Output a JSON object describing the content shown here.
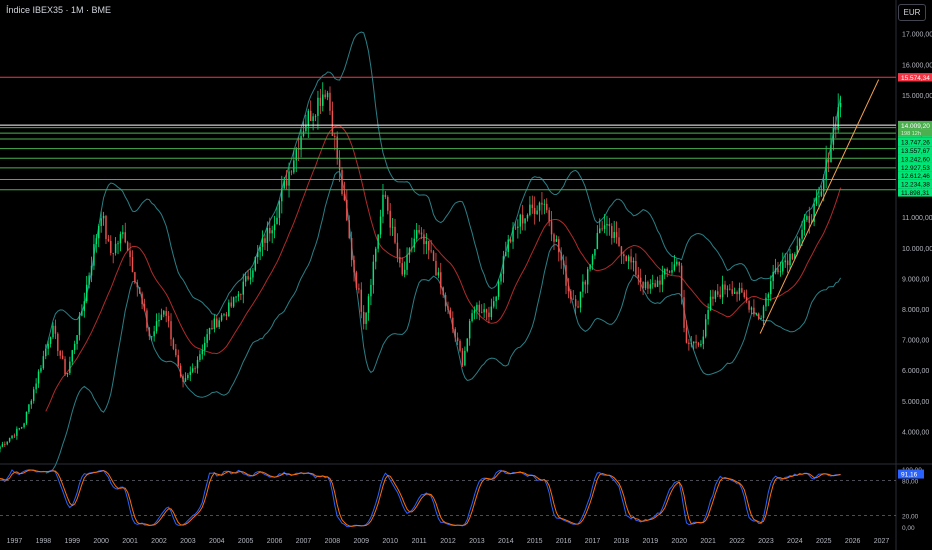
{
  "header": {
    "title": "Índice IBEX35 · 1M · BME",
    "currency": "EUR"
  },
  "chart_data": [
    {
      "type": "candlestick",
      "title": "Índice IBEX35 · 1M · BME",
      "price_axis": {
        "ticks": [
          4000,
          5000,
          6000,
          7000,
          8000,
          9000,
          10000,
          11000,
          12000,
          13000,
          14000,
          15000,
          16000,
          17000
        ],
        "tick_labels": [
          "4.000,00",
          "5.000,00",
          "6.000,00",
          "7.000,00",
          "8.000,00",
          "9.000,00",
          "10.000,00",
          "11.000,00",
          "12.000,00",
          "13.000,00",
          "14.000,00",
          "15.000,00",
          "16.000,00",
          "17.000,00"
        ],
        "range": [
          3000,
          18100
        ]
      },
      "time_axis": {
        "years": [
          "1997",
          "1998",
          "1999",
          "2000",
          "2001",
          "2002",
          "2003",
          "2004",
          "2005",
          "2006",
          "2007",
          "2008",
          "2009",
          "2010",
          "2011",
          "2012",
          "2013",
          "2014",
          "2015",
          "2016",
          "2017",
          "2018",
          "2019",
          "2020",
          "2021",
          "2022",
          "2023",
          "2024",
          "2025",
          "2026",
          "2027"
        ],
        "range": [
          1996.5,
          2027.5
        ]
      },
      "anchors": [
        [
          1996.5,
          3500
        ],
        [
          1997.3,
          4200
        ],
        [
          1998.3,
          7400
        ],
        [
          1998.8,
          5800
        ],
        [
          1999.3,
          7800
        ],
        [
          2000.0,
          11200
        ],
        [
          2000.3,
          9800
        ],
        [
          2000.8,
          10500
        ],
        [
          2001.7,
          7000
        ],
        [
          2002.2,
          8100
        ],
        [
          2002.8,
          5450
        ],
        [
          2003.2,
          6100
        ],
        [
          2003.8,
          7400
        ],
        [
          2004.5,
          8100
        ],
        [
          2005.0,
          8900
        ],
        [
          2006.0,
          11000
        ],
        [
          2007.0,
          14000
        ],
        [
          2007.8,
          15300
        ],
        [
          2008.0,
          14000
        ],
        [
          2008.7,
          9500
        ],
        [
          2009.1,
          7600
        ],
        [
          2009.8,
          11800
        ],
        [
          2010.4,
          9000
        ],
        [
          2010.9,
          10500
        ],
        [
          2011.5,
          9600
        ],
        [
          2011.8,
          8500
        ],
        [
          2012.5,
          6300
        ],
        [
          2012.9,
          8100
        ],
        [
          2013.5,
          7900
        ],
        [
          2014.0,
          10000
        ],
        [
          2014.5,
          10900
        ],
        [
          2015.3,
          11600
        ],
        [
          2015.8,
          10000
        ],
        [
          2016.2,
          8500
        ],
        [
          2016.5,
          8200
        ],
        [
          2017.3,
          10800
        ],
        [
          2018.0,
          10000
        ],
        [
          2018.9,
          8600
        ],
        [
          2019.5,
          9100
        ],
        [
          2020.0,
          9600
        ],
        [
          2020.2,
          6800
        ],
        [
          2020.8,
          7000
        ],
        [
          2021.1,
          8300
        ],
        [
          2021.7,
          8800
        ],
        [
          2022.3,
          8300
        ],
        [
          2022.8,
          7700
        ],
        [
          2023.3,
          9300
        ],
        [
          2023.9,
          9800
        ],
        [
          2024.5,
          11000
        ],
        [
          2024.9,
          11600
        ],
        [
          2025.2,
          13300
        ],
        [
          2025.6,
          14900
        ]
      ],
      "horizontal_levels": [
        {
          "value": 15574.34,
          "label": "15.574,34",
          "color": "#f23645"
        },
        {
          "value": 14009.2,
          "label": "14.009,20",
          "color": "#ffffff"
        },
        {
          "value": 13929.7,
          "label": "13.929,70",
          "color": "#4caf50"
        },
        {
          "value": 13747.26,
          "label": "13.747,26",
          "color": "#4caf50"
        },
        {
          "value": 13557.67,
          "label": "13.557,67",
          "color": "#4caf50"
        },
        {
          "value": 13242.6,
          "label": "13.242,60",
          "color": "#4caf50"
        },
        {
          "value": 12927.53,
          "label": "12.927,53",
          "color": "#4caf50"
        },
        {
          "value": 12612.46,
          "label": "12.612,46",
          "color": "#4caf50"
        },
        {
          "value": 12234.38,
          "label": "12.234,38",
          "color": "#4caf50"
        },
        {
          "value": 11898.31,
          "label": "11.898,31",
          "color": "#4caf50"
        }
      ],
      "last_price": {
        "value": 14009.2,
        "label": "14.009,20",
        "countdown": "198 12h"
      },
      "trendline": {
        "from": [
          2022.8,
          7200
        ],
        "to": [
          2026.9,
          15500
        ],
        "color": "#f7a350"
      },
      "colors": {
        "up": "#26a69a",
        "down": "#ef5350",
        "up_bright": "#00e676",
        "bands": "#2a7f86",
        "ma": "#b02a2a"
      }
    },
    {
      "type": "line",
      "title": "",
      "indicator_axis": {
        "ticks": [
          0,
          20,
          80,
          100
        ],
        "tick_labels": [
          "0,00",
          "20,00",
          "80,00",
          "100,00"
        ],
        "range": [
          -5,
          105
        ]
      },
      "series": [
        {
          "color": "#2962ff"
        },
        {
          "color": "#ff6d00"
        }
      ],
      "current_value": {
        "value": 91.16,
        "label": "91,16"
      }
    }
  ]
}
